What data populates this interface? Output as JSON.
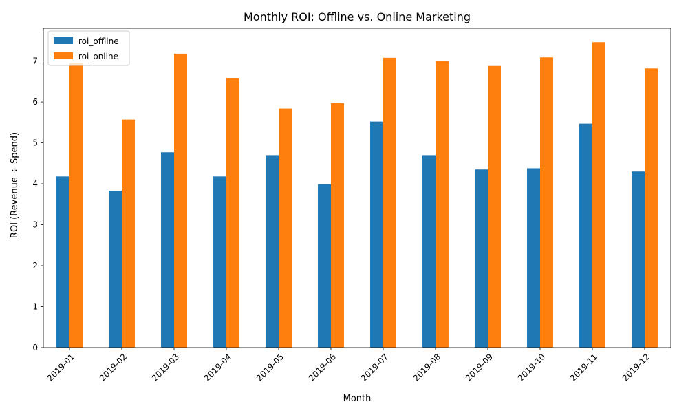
{
  "chart_data": {
    "type": "bar",
    "title": "Monthly ROI: Offline vs. Online Marketing",
    "xlabel": "Month",
    "ylabel": "ROI (Revenue ÷ Spend)",
    "categories": [
      "2019-01",
      "2019-02",
      "2019-03",
      "2019-04",
      "2019-05",
      "2019-06",
      "2019-07",
      "2019-08",
      "2019-09",
      "2019-10",
      "2019-11",
      "2019-12"
    ],
    "series": [
      {
        "name": "roi_offline",
        "color": "#1f77b4",
        "values": [
          4.18,
          3.83,
          4.77,
          4.18,
          4.7,
          3.99,
          5.52,
          4.7,
          4.35,
          4.38,
          5.47,
          4.3
        ]
      },
      {
        "name": "roi_online",
        "color": "#ff7f0e",
        "values": [
          6.95,
          5.57,
          7.18,
          6.58,
          5.84,
          5.97,
          7.08,
          7.0,
          6.88,
          7.09,
          7.46,
          6.82
        ]
      }
    ],
    "ylim": [
      0,
      7.8
    ],
    "yticks": [
      0,
      1,
      2,
      3,
      4,
      5,
      6,
      7
    ],
    "legend_position": "top-left",
    "grid": false
  }
}
